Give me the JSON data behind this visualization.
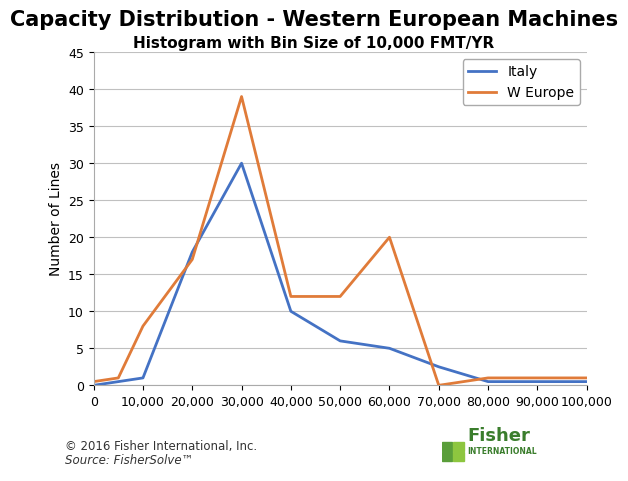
{
  "title": "Capacity Distribution - Western European Machines",
  "subtitle": "Histogram with Bin Size of 10,000 FMT/YR",
  "ylabel": "Number of Lines",
  "xlabel": "",
  "italy_x": [
    0,
    5000,
    10000,
    20000,
    30000,
    40000,
    50000,
    60000,
    70000,
    80000,
    90000,
    100000
  ],
  "italy_y": [
    0,
    0.5,
    1,
    18,
    30,
    10,
    6,
    5,
    2.5,
    0.5,
    0.5,
    0.5
  ],
  "weurope_x": [
    0,
    5000,
    10000,
    20000,
    30000,
    40000,
    50000,
    60000,
    70000,
    80000,
    90000,
    100000
  ],
  "weurope_y": [
    0.5,
    1,
    8,
    17,
    39,
    12,
    12,
    20,
    0,
    1,
    1,
    1
  ],
  "italy_color": "#4472C4",
  "weurope_color": "#E07B39",
  "ylim": [
    0,
    45
  ],
  "yticks": [
    0,
    5,
    10,
    15,
    20,
    25,
    30,
    35,
    40,
    45
  ],
  "xlim": [
    0,
    100000
  ],
  "xticks": [
    0,
    10000,
    20000,
    30000,
    40000,
    50000,
    60000,
    70000,
    80000,
    90000,
    100000
  ],
  "xtick_labels": [
    "0",
    "10,000",
    "20,000",
    "30,000",
    "40,000",
    "50,000",
    "60,000",
    "70,000",
    "80,000",
    "90,000",
    "100,000"
  ],
  "footer_line1": "© 2016 Fisher International, Inc.",
  "footer_line2": "Source: FisherSolve™",
  "background_color": "#ffffff",
  "plot_bg_color": "#ffffff",
  "grid_color": "#c0c0c0",
  "title_fontsize": 15,
  "subtitle_fontsize": 11,
  "axis_label_fontsize": 10,
  "tick_fontsize": 9,
  "legend_fontsize": 10,
  "footer_fontsize": 8.5
}
